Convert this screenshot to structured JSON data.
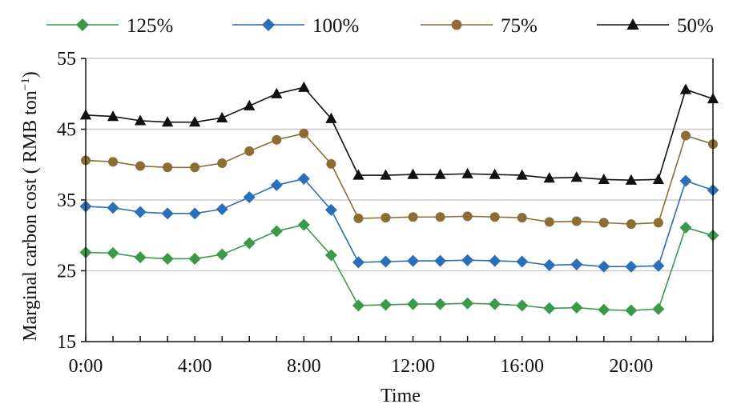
{
  "chart_data": {
    "type": "line",
    "xlabel": "Time",
    "ylabel": "Marginal carbon cost ( RMB ton",
    "ylabel_superscript": "−1",
    "ylabel_close": ")",
    "ylim": [
      15,
      55
    ],
    "y_ticks": [
      15,
      25,
      35,
      45,
      55
    ],
    "y_tick_labels": [
      "15",
      "25",
      "35",
      "45",
      "55"
    ],
    "xlim": [
      0,
      23
    ],
    "x_ticks": [
      0,
      4,
      8,
      12,
      16,
      20
    ],
    "x_tick_labels": [
      "0:00",
      "4:00",
      "8:00",
      "12:00",
      "16:00",
      "20:00"
    ],
    "x": [
      0,
      1,
      2,
      3,
      4,
      5,
      6,
      7,
      8,
      9,
      10,
      11,
      12,
      13,
      14,
      15,
      16,
      17,
      18,
      19,
      20,
      21,
      22,
      23
    ],
    "grid": "horizontal",
    "legend_position": "top",
    "series": [
      {
        "name": "125%",
        "color": "#3a9a4a",
        "marker": "diamond",
        "values": [
          27.6,
          27.5,
          26.9,
          26.7,
          26.7,
          27.3,
          28.9,
          30.6,
          31.5,
          27.2,
          20.1,
          20.2,
          20.3,
          20.3,
          20.4,
          20.3,
          20.1,
          19.7,
          19.8,
          19.5,
          19.4,
          19.6,
          31.1,
          30.0
        ]
      },
      {
        "name": "100%",
        "color": "#2a6fb8",
        "marker": "diamond",
        "values": [
          34.1,
          33.9,
          33.3,
          33.1,
          33.1,
          33.7,
          35.4,
          37.1,
          38.0,
          33.6,
          26.2,
          26.3,
          26.4,
          26.4,
          26.5,
          26.4,
          26.3,
          25.8,
          25.9,
          25.6,
          25.6,
          25.7,
          37.7,
          36.4
        ]
      },
      {
        "name": "75%",
        "color": "#8c6d34",
        "marker": "circle",
        "values": [
          40.6,
          40.4,
          39.8,
          39.6,
          39.6,
          40.2,
          41.9,
          43.5,
          44.4,
          40.1,
          32.4,
          32.5,
          32.6,
          32.6,
          32.7,
          32.6,
          32.5,
          31.9,
          32.0,
          31.8,
          31.6,
          31.8,
          44.1,
          42.9
        ]
      },
      {
        "name": "50%",
        "color": "#111111",
        "marker": "triangle",
        "values": [
          47.0,
          46.8,
          46.2,
          46.0,
          46.0,
          46.6,
          48.3,
          50.0,
          50.9,
          46.5,
          38.5,
          38.5,
          38.6,
          38.6,
          38.7,
          38.6,
          38.5,
          38.1,
          38.2,
          37.9,
          37.8,
          37.9,
          50.6,
          49.3
        ]
      }
    ]
  }
}
